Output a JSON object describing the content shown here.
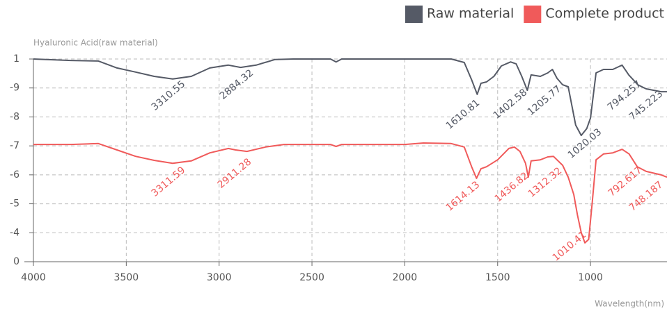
{
  "chart_data": {
    "type": "line",
    "y_axis_title": "Hyaluronic Acid(raw material)",
    "x_axis_title": "Wavelength(nm)",
    "xlim": [
      4000,
      588
    ],
    "xticks": [
      4000,
      3500,
      3000,
      2500,
      2000,
      1500,
      1000
    ],
    "ylim": [
      0,
      7.6
    ],
    "yticks": [
      0,
      {
        "value": 1,
        "label": "-4"
      },
      {
        "value": 2,
        "label": "-5"
      },
      {
        "value": 3,
        "label": "-6"
      },
      {
        "value": 4,
        "label": "-7"
      },
      {
        "value": 5,
        "label": "-8"
      },
      {
        "value": 6,
        "label": "-9"
      },
      {
        "value": 7,
        "label": "1"
      }
    ],
    "grid": true,
    "legend": "top-right",
    "series": [
      {
        "name": "Raw material",
        "color": "#555a66",
        "x": [
          4000,
          3800,
          3650,
          3550,
          3450,
          3350,
          3250,
          3150,
          3050,
          2950,
          2884,
          2800,
          2700,
          2600,
          2400,
          2370,
          2340,
          2000,
          1750,
          1680,
          1640,
          1610,
          1590,
          1560,
          1520,
          1480,
          1430,
          1400,
          1370,
          1340,
          1320,
          1270,
          1230,
          1205,
          1180,
          1150,
          1120,
          1080,
          1050,
          1020,
          1000,
          970,
          930,
          880,
          830,
          794,
          745,
          700,
          620,
          588
        ],
        "values": [
          7.0,
          6.95,
          6.93,
          6.69,
          6.55,
          6.4,
          6.31,
          6.4,
          6.69,
          6.79,
          6.71,
          6.79,
          6.98,
          7.0,
          7.0,
          6.9,
          7.0,
          7.0,
          7.0,
          6.88,
          6.28,
          5.78,
          6.16,
          6.21,
          6.4,
          6.76,
          6.9,
          6.83,
          6.4,
          5.92,
          6.45,
          6.4,
          6.52,
          6.64,
          6.33,
          6.11,
          6.04,
          4.72,
          4.36,
          4.6,
          4.96,
          6.52,
          6.64,
          6.64,
          6.79,
          6.45,
          6.11,
          5.97,
          5.87,
          5.87
        ],
        "annotations": [
          "3310.55",
          "2884.32",
          "1610.81",
          "1402.58",
          "1205.77",
          "1020.03",
          "794.257",
          "745.223"
        ]
      },
      {
        "name": "Complete product",
        "color": "#f05a5a",
        "x": [
          4000,
          3800,
          3650,
          3550,
          3450,
          3350,
          3250,
          3150,
          3050,
          2950,
          2911,
          2850,
          2750,
          2650,
          2400,
          2370,
          2340,
          2000,
          1900,
          1750,
          1680,
          1640,
          1614,
          1590,
          1560,
          1500,
          1440,
          1410,
          1380,
          1350,
          1335,
          1320,
          1270,
          1230,
          1200,
          1150,
          1120,
          1090,
          1070,
          1050,
          1030,
          1010,
          990,
          970,
          930,
          880,
          830,
          792,
          748,
          700,
          620,
          588
        ],
        "values": [
          4.05,
          4.05,
          4.08,
          3.86,
          3.64,
          3.5,
          3.4,
          3.48,
          3.76,
          3.91,
          3.86,
          3.81,
          3.96,
          4.05,
          4.05,
          3.98,
          4.05,
          4.05,
          4.1,
          4.08,
          3.96,
          3.28,
          2.88,
          3.21,
          3.28,
          3.52,
          3.91,
          3.96,
          3.81,
          3.4,
          2.92,
          3.48,
          3.52,
          3.62,
          3.64,
          3.33,
          2.92,
          2.32,
          1.61,
          1.01,
          0.65,
          0.77,
          2.09,
          3.52,
          3.72,
          3.76,
          3.88,
          3.72,
          3.28,
          3.12,
          3.0,
          2.92
        ],
        "annotations": [
          "3311.59",
          "2911.28",
          "1614.13",
          "1436.82",
          "1312.32",
          "1010.41",
          "792.617",
          "748.187"
        ]
      }
    ]
  }
}
